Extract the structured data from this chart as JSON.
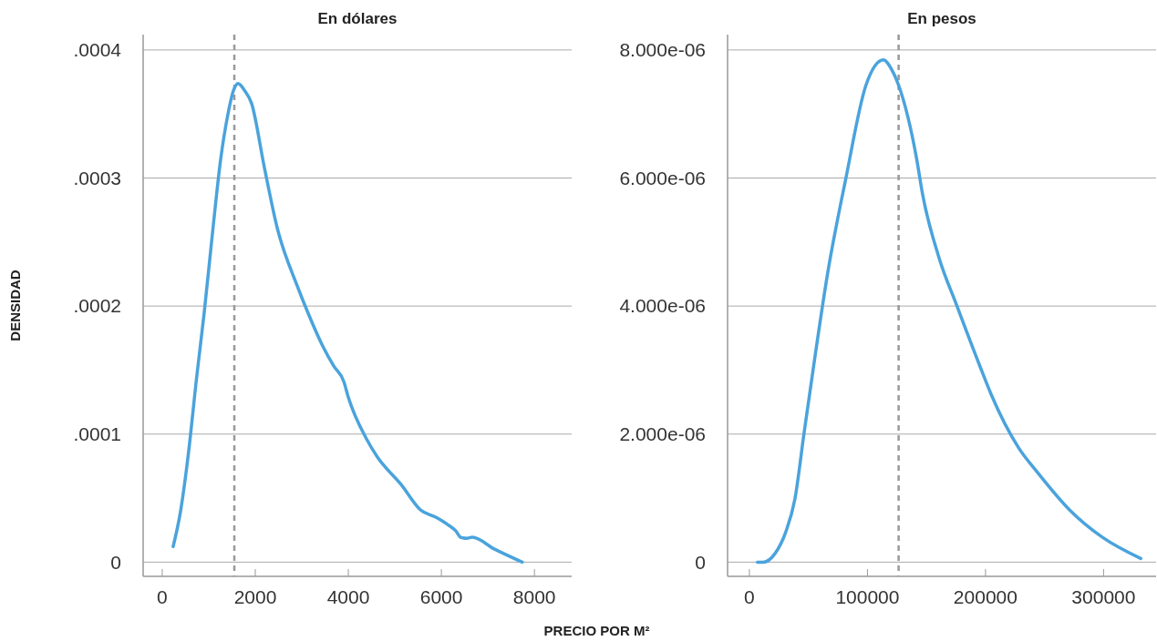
{
  "chart_data": [
    {
      "type": "line",
      "title": "En dólares",
      "ylabel": "DENSIDAD",
      "xlabel": "PRECIO POR M²",
      "x": [
        235,
        392,
        549,
        745,
        901,
        1097,
        1254,
        1411,
        1529,
        1631,
        1764,
        1921,
        2195,
        2469,
        2901,
        3136,
        3449,
        3685,
        3904,
        3998,
        4390,
        4625,
        5135,
        5551,
        5880,
        6115,
        6311,
        6413,
        6546,
        6664,
        7134,
        7738
      ],
      "series": [
        {
          "color": "#4aa3dc",
          "values": [
            1.22e-05,
            3.93e-05,
            8.06e-05,
            0.000146,
            0.0001944,
            0.0002628,
            0.000314,
            0.0003496,
            0.0003681,
            0.0003738,
            0.0003687,
            0.0003582,
            0.0003083,
            0.0002614,
            0.0002158,
            0.0001944,
            0.0001688,
            0.0001532,
            0.0001409,
            0.000129,
            9.63e-05,
            8.21e-05,
            6.06e-05,
            4.08e-05,
            3.51e-05,
            2.99e-05,
            2.43e-05,
            1.94e-05,
            1.86e-05,
            1.94e-05,
            1.03e-05,
            0
          ]
        }
      ],
      "xlim": [
        -410,
        8800
      ],
      "xticks": [
        0,
        2000,
        4000,
        6000,
        8000
      ],
      "ylim": [
        -1.11e-05,
        0.000412
      ],
      "yticks": [
        {
          "value": 0,
          "label": "0"
        },
        {
          "value": 0.0001,
          "label": ".0001"
        },
        {
          "value": 0.0002,
          "label": ".0002"
        },
        {
          "value": 0.0003,
          "label": ".0003"
        },
        {
          "value": 0.0004,
          "label": ".0004"
        }
      ],
      "grid": "y",
      "line_style": "solid",
      "ref_lines": [
        {
          "axis": "x",
          "value": 1550,
          "color": "#999999",
          "line_style": "dashed"
        }
      ]
    },
    {
      "type": "line",
      "title": "En pesos",
      "x": [
        6785,
        11740,
        21590,
        30840,
        38550,
        46260,
        55510,
        66300,
        81720,
        98680,
        113480,
        120260,
        126430,
        141850,
        146480,
        160350,
        175770,
        195810,
        205060,
        228190,
        243600,
        271360,
        299110,
        331490
      ],
      "series": [
        {
          "color": "#4aa3dc",
          "values": [
            0,
            0,
            1.32e-07,
            4.74e-07,
            9.87e-07,
            2.011e-06,
            3.206e-06,
            4.516e-06,
            5.996e-06,
            7.447e-06,
            7.846e-06,
            7.703e-06,
            7.447e-06,
            6.28e-06,
            5.768e-06,
            4.771e-06,
            4.003e-06,
            3.035e-06,
            2.608e-06,
            1.782e-06,
            1.412e-06,
            8.14e-07,
            3.87e-07,
            5.7e-08
          ]
        }
      ],
      "xlim": [
        -18500,
        344500
      ],
      "xticks": [
        0,
        100000,
        200000,
        300000
      ],
      "ylim": [
        -2.22e-07,
        8.24e-06
      ],
      "yticks": [
        {
          "value": 0,
          "label": "0"
        },
        {
          "value": 2e-06,
          "label": "2.000e-06"
        },
        {
          "value": 4e-06,
          "label": "4.000e-06"
        },
        {
          "value": 6e-06,
          "label": "6.000e-06"
        },
        {
          "value": 8e-06,
          "label": "8.000e-06"
        }
      ],
      "grid": "y",
      "line_style": "solid",
      "ref_lines": [
        {
          "axis": "x",
          "value": 126400,
          "color": "#999999",
          "line_style": "dashed"
        }
      ]
    }
  ]
}
